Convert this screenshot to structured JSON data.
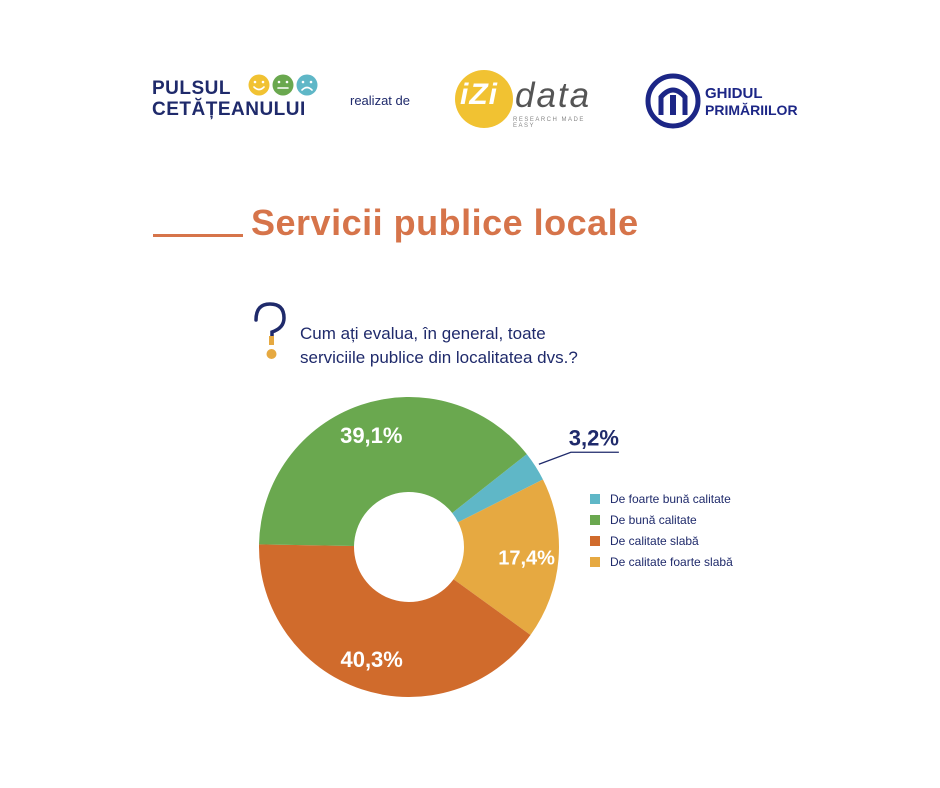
{
  "header": {
    "pulsul_line1": "PULSUL",
    "pulsul_line2": "CETĂȚEANULUI",
    "realizat": "realizat de",
    "izi_text": "iZi",
    "data_text": "data",
    "izi_tagline": "RESEARCH MADE EASY",
    "ghidul_line1": "GHIDUL",
    "ghidul_line2": "PRIMĂRIILOR",
    "face_colors": [
      "#f1c232",
      "#6aa84f",
      "#5fb7c7"
    ]
  },
  "title": "Servicii publice locale",
  "question": {
    "line1": "Cum ați evalua, în general, toate",
    "line2": "serviciile publice din localitatea dvs.?"
  },
  "chart_data": {
    "type": "pie",
    "donut": true,
    "categories": [
      "De foarte bună calitate",
      "De bună calitate",
      "De calitate slabă",
      "De calitate foarte slabă"
    ],
    "values": [
      3.2,
      39.1,
      40.3,
      17.4
    ],
    "labels": [
      "3,2%",
      "39,1%",
      "40,3%",
      "17,4%"
    ],
    "colors": [
      "#5fb7c7",
      "#6aa84f",
      "#d06b2c",
      "#e6a941"
    ],
    "legend_position": "right"
  }
}
